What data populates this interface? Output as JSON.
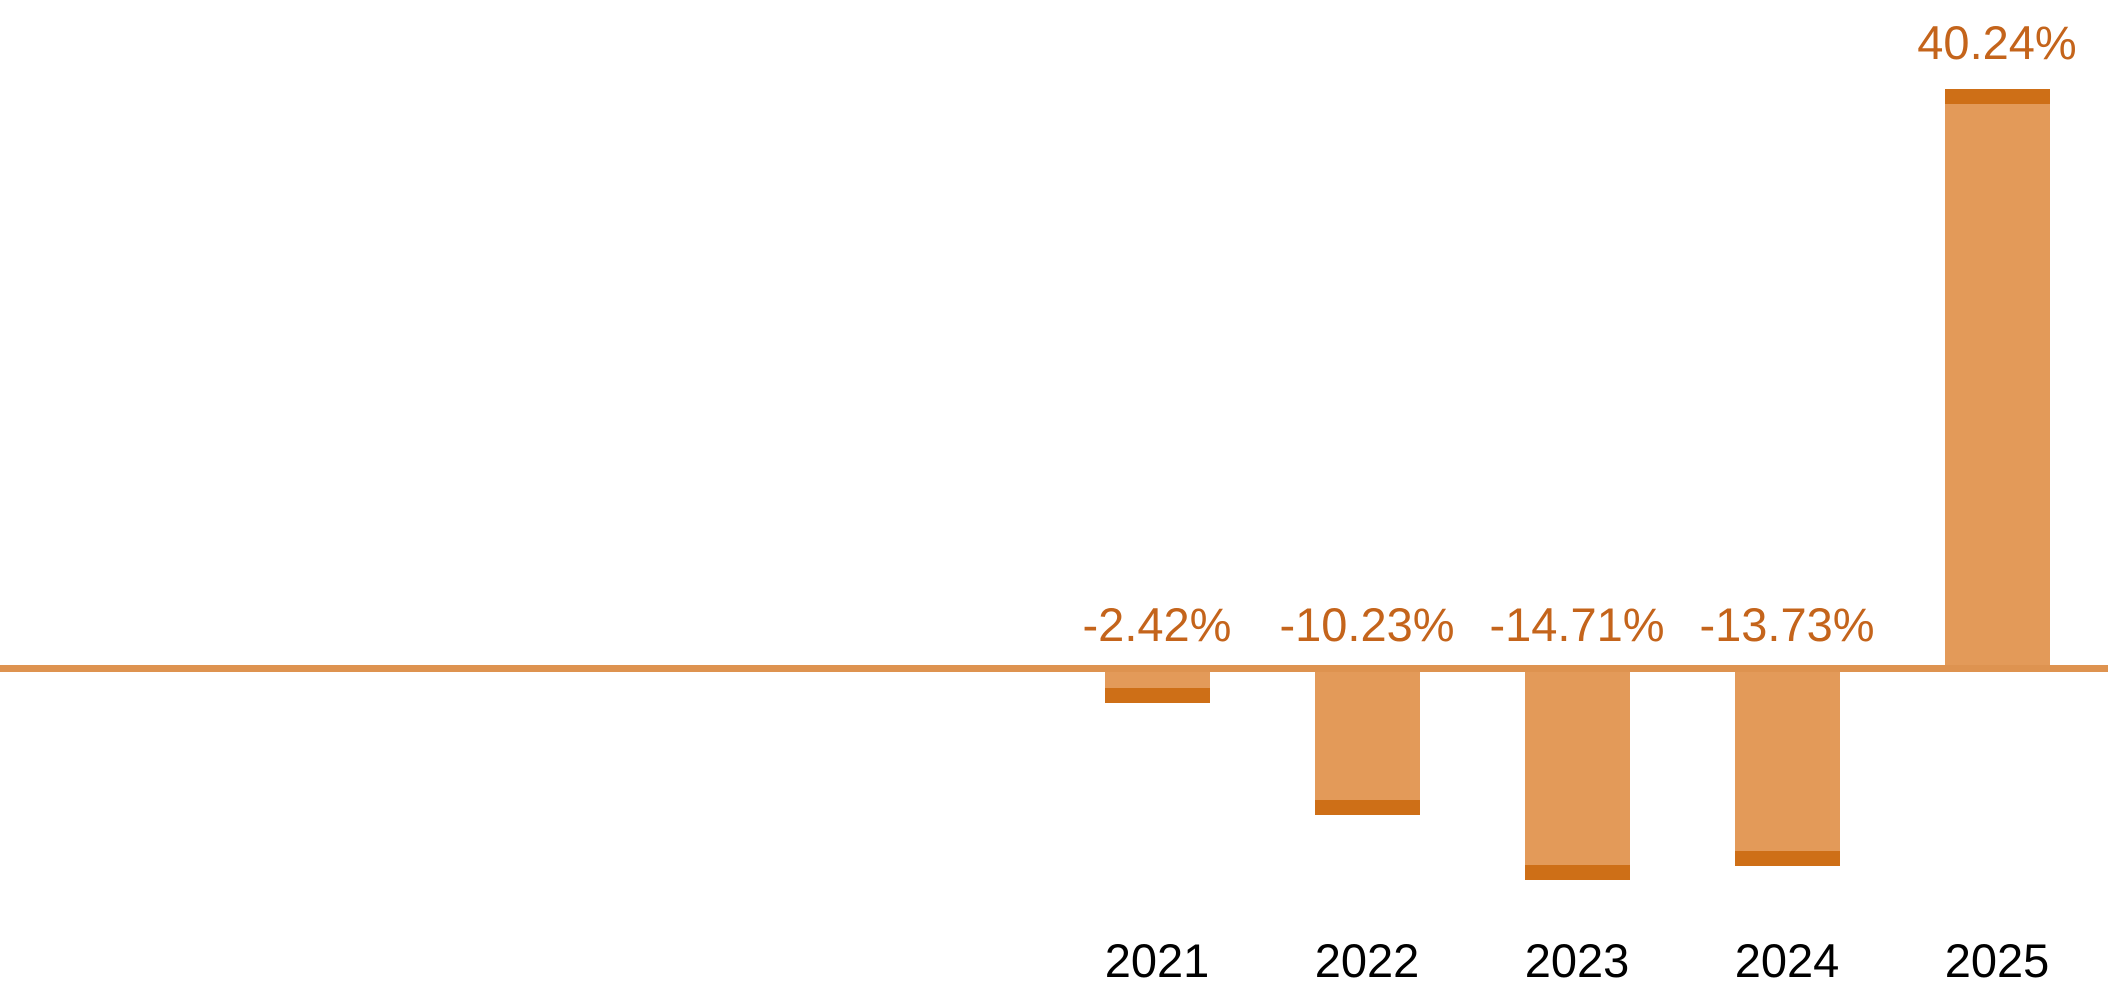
{
  "chart_data": {
    "type": "bar",
    "title": "",
    "xlabel": "",
    "ylabel": "",
    "categories": [
      "2021",
      "2022",
      "2023",
      "2024",
      "2025"
    ],
    "values": [
      -2.42,
      -10.23,
      -14.71,
      -13.73,
      40.24
    ],
    "labels": [
      "-2.42%",
      "-10.23%",
      "-14.71%",
      "-13.73%",
      "40.24%"
    ],
    "ylim": [
      -20,
      45
    ],
    "grid": false,
    "legend_position": "none",
    "colors": {
      "bar_fill": "#E39A59",
      "bar_cap": "#CE6F17",
      "zero_line": "#DE9350",
      "value_label": "#C4641B",
      "year_label": "#000000"
    }
  }
}
